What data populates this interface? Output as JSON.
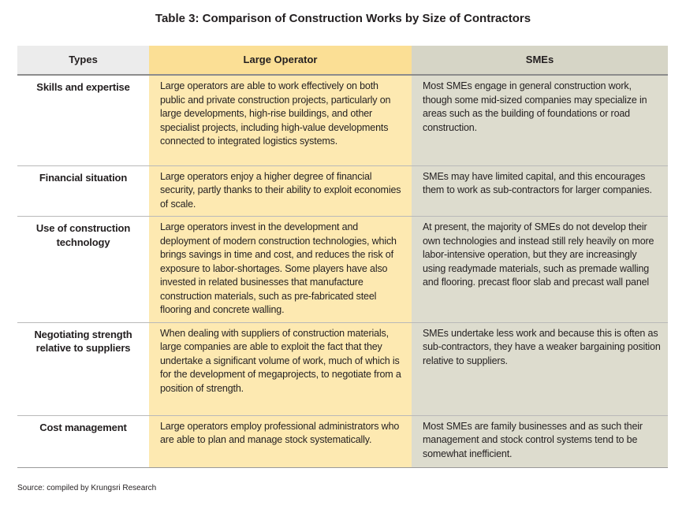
{
  "title": "Table 3: Comparison of Construction Works by Size of Contractors",
  "headers": {
    "types": "Types",
    "large": "Large Operator",
    "smes": "SMEs"
  },
  "rows": [
    {
      "type": "Skills and expertise",
      "large": "Large operators are able to work effectively on both public and private construction projects, particularly on large developments, high-rise buildings, and other specialist projects, including high-value developments connected to integrated logistics systems.",
      "sme": "Most SMEs engage in general construction work, though some mid-sized companies may specialize in areas such as the building of foundations or road construction."
    },
    {
      "type": "Financial situation",
      "large": "Large operators enjoy a higher degree of financial security, partly thanks to their ability to exploit economies of scale.",
      "sme": "SMEs may have limited capital, and this encourages them to work as sub-contractors for larger companies."
    },
    {
      "type": "Use of construction technology",
      "large": "Large operators invest in the development and deployment of modern construction technologies, which brings savings in time and cost, and reduces the risk of exposure to labor-shortages. Some players have also invested in related businesses that manufacture construction materials, such as pre-fabricated steel flooring and concrete walling.",
      "sme": "At present, the majority of SMEs do not develop their own technologies and instead still rely heavily on more labor-intensive operation, but they are increasingly using readymade materials, such as premade walling and flooring.  precast floor slab and precast wall panel"
    },
    {
      "type": "Negotiating  strength relative to suppliers",
      "large": "When dealing with suppliers of construction materials, large companies are able to exploit the fact that they undertake a significant volume of work, much of which is for the development of megaprojects, to negotiate from a position of strength.",
      "sme": "SMEs undertake less work and because this is often as sub-contractors, they have a weaker bargaining position relative to suppliers."
    },
    {
      "type": "Cost management",
      "large": "Large operators employ professional administrators who are able to plan and manage stock systematically.",
      "sme": "Most SMEs are family businesses and as such their management and stock control systems tend to be somewhat inefficient."
    }
  ],
  "source": "Source: compiled by Krungsri Research",
  "colors": {
    "header_types_bg": "#ececec",
    "header_large_bg": "#fbdf95",
    "header_smes_bg": "#d6d5c6",
    "large_cell_bg": "#fde9b1",
    "sme_cell_bg": "#dddcce"
  }
}
